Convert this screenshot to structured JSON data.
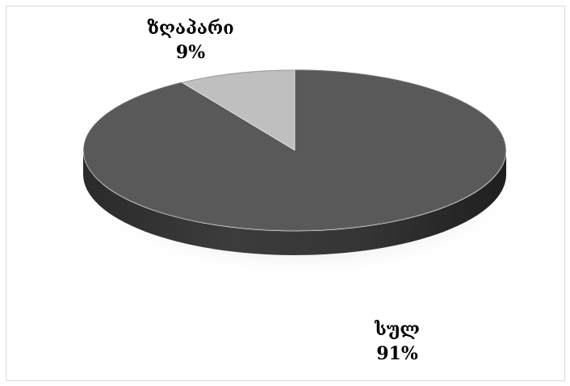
{
  "chart_data": {
    "type": "pie",
    "style": "3d",
    "title": "",
    "legend": "none",
    "slices": [
      {
        "label": "სულ",
        "value": 91,
        "value_label": "91%",
        "color": "#595959"
      },
      {
        "label": "ზღაპარი",
        "value": 9,
        "value_label": "9%",
        "color": "#bfbfbf"
      }
    ]
  }
}
